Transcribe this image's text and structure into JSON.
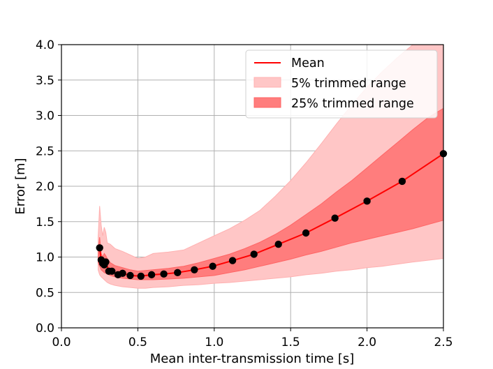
{
  "chart_data": {
    "type": "line",
    "title": "",
    "xlabel": "Mean inter-transmission time [s]",
    "ylabel": "Error [m]",
    "xlim": [
      0.0,
      2.5
    ],
    "ylim": [
      0.0,
      4.0
    ],
    "xticks": [
      "0.0",
      "0.5",
      "1.0",
      "1.5",
      "2.0",
      "2.5"
    ],
    "yticks": [
      "0.0",
      "0.5",
      "1.0",
      "1.5",
      "2.0",
      "2.5",
      "3.0",
      "3.5",
      "4.0"
    ],
    "grid": true,
    "legend_position": "top-right",
    "colors": {
      "mean": "#ff0000",
      "band_5": "#ffc6c6",
      "band_25": "#ff7d7d",
      "points": "#000000",
      "grid": "#b0b0b0"
    },
    "series": [
      {
        "name": "Mean",
        "kind": "line",
        "x": [
          0.25,
          0.26,
          0.27,
          0.28,
          0.29,
          0.31,
          0.33,
          0.37,
          0.4,
          0.45,
          0.52,
          0.59,
          0.67,
          0.76,
          0.87,
          0.99,
          1.12,
          1.26,
          1.42,
          1.6,
          1.79,
          2.0,
          2.23,
          2.5
        ],
        "y": [
          1.13,
          0.96,
          0.91,
          0.89,
          0.93,
          0.8,
          0.8,
          0.75,
          0.77,
          0.74,
          0.73,
          0.75,
          0.76,
          0.78,
          0.82,
          0.87,
          0.95,
          1.04,
          1.18,
          1.34,
          1.55,
          1.79,
          2.07,
          2.46
        ]
      },
      {
        "name": "5% trimmed range",
        "kind": "band",
        "x": [
          0.24,
          0.25,
          0.26,
          0.27,
          0.28,
          0.29,
          0.3,
          0.32,
          0.35,
          0.4,
          0.45,
          0.5,
          0.55,
          0.6,
          0.7,
          0.8,
          0.9,
          1.0,
          1.1,
          1.2,
          1.3,
          1.4,
          1.5,
          1.6,
          1.7,
          1.8,
          1.9,
          2.0,
          2.1,
          2.2,
          2.3,
          2.38,
          2.5
        ],
        "lower": [
          0.82,
          0.75,
          0.72,
          0.7,
          0.68,
          0.66,
          0.64,
          0.62,
          0.6,
          0.58,
          0.57,
          0.56,
          0.56,
          0.57,
          0.58,
          0.6,
          0.61,
          0.63,
          0.64,
          0.66,
          0.68,
          0.7,
          0.72,
          0.75,
          0.77,
          0.8,
          0.82,
          0.85,
          0.87,
          0.9,
          0.93,
          0.95,
          0.98
        ],
        "upper": [
          1.28,
          1.72,
          1.45,
          1.3,
          1.42,
          1.35,
          1.2,
          1.18,
          1.12,
          1.08,
          1.03,
          0.98,
          1.0,
          1.05,
          1.07,
          1.1,
          1.2,
          1.3,
          1.4,
          1.52,
          1.66,
          1.86,
          2.08,
          2.33,
          2.6,
          2.88,
          3.15,
          3.4,
          3.62,
          3.82,
          4.0,
          4.0,
          4.0
        ]
      },
      {
        "name": "25% trimmed range",
        "kind": "band",
        "x": [
          0.24,
          0.25,
          0.26,
          0.27,
          0.28,
          0.29,
          0.3,
          0.32,
          0.35,
          0.4,
          0.45,
          0.5,
          0.55,
          0.6,
          0.7,
          0.8,
          0.9,
          1.0,
          1.1,
          1.2,
          1.3,
          1.4,
          1.5,
          1.6,
          1.7,
          1.8,
          1.9,
          2.0,
          2.1,
          2.2,
          2.3,
          2.4,
          2.5
        ],
        "lower": [
          0.92,
          0.87,
          0.82,
          0.8,
          0.78,
          0.77,
          0.76,
          0.74,
          0.72,
          0.7,
          0.69,
          0.68,
          0.68,
          0.68,
          0.69,
          0.7,
          0.72,
          0.74,
          0.78,
          0.82,
          0.87,
          0.92,
          0.97,
          1.03,
          1.08,
          1.14,
          1.2,
          1.25,
          1.3,
          1.35,
          1.4,
          1.46,
          1.52
        ],
        "upper": [
          1.08,
          1.28,
          1.05,
          1.0,
          1.05,
          1.02,
          0.98,
          0.92,
          0.88,
          0.85,
          0.82,
          0.8,
          0.81,
          0.82,
          0.84,
          0.87,
          0.92,
          0.98,
          1.04,
          1.12,
          1.21,
          1.32,
          1.45,
          1.6,
          1.75,
          1.92,
          2.08,
          2.26,
          2.44,
          2.62,
          2.8,
          2.97,
          3.1
        ]
      }
    ]
  }
}
